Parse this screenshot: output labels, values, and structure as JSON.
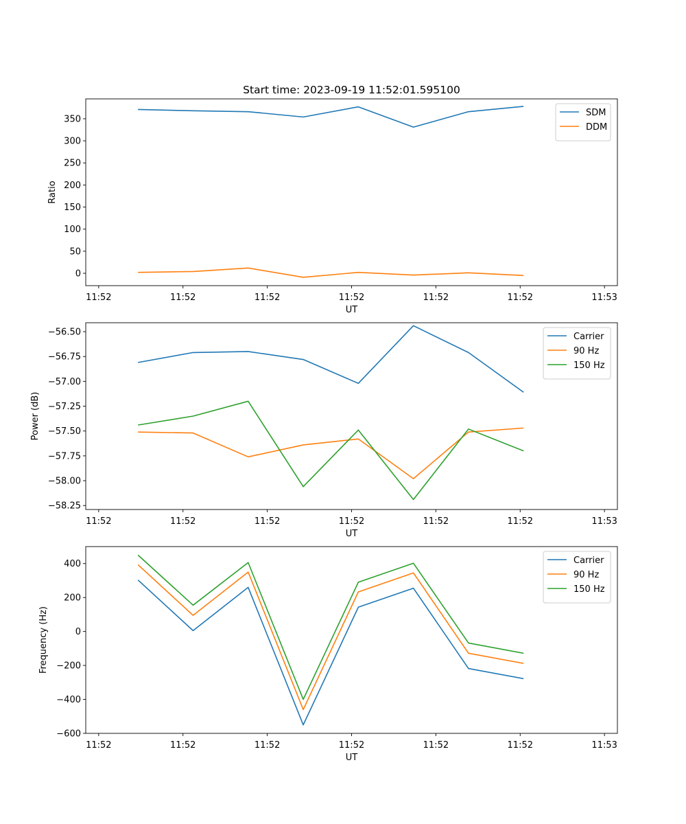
{
  "chart_data": [
    {
      "type": "line",
      "title": "Start time: 2023-09-19 11:52:01.595100",
      "xlabel": "UT",
      "ylabel": "Ratio",
      "ylim": [
        -28,
        395
      ],
      "yticks": [
        0,
        50,
        100,
        150,
        200,
        250,
        300,
        350
      ],
      "yticklabels": [
        "0",
        "50",
        "100",
        "150",
        "200",
        "250",
        "300",
        "350"
      ],
      "xlim": [
        -0.23,
        9.23
      ],
      "xticks": [
        0,
        1.5,
        3,
        4.5,
        6,
        7.5,
        9
      ],
      "xticklabels": [
        "11:52",
        "11:52",
        "11:52",
        "11:52",
        "11:52",
        "11:52",
        "11:53"
      ],
      "x": [
        0.7,
        1.68,
        2.66,
        3.64,
        4.62,
        5.6,
        6.58,
        7.56
      ],
      "legend": "upper right",
      "series": [
        {
          "name": "SDM",
          "color": "#1f77b4",
          "values": [
            371,
            368,
            366,
            354,
            377,
            331,
            366,
            378
          ]
        },
        {
          "name": "DDM",
          "color": "#ff7f0e",
          "values": [
            2,
            4,
            12,
            -9,
            2,
            -4,
            1,
            -5
          ]
        }
      ]
    },
    {
      "type": "line",
      "title": "",
      "xlabel": "UT",
      "ylabel": "Power (dB)",
      "ylim": [
        -58.29,
        -56.41
      ],
      "yticks": [
        -58.25,
        -58.0,
        -57.75,
        -57.5,
        -57.25,
        -57.0,
        -56.75,
        -56.5
      ],
      "yticklabels": [
        "−58.25",
        "−58.00",
        "−57.75",
        "−57.50",
        "−57.25",
        "−57.00",
        "−56.75",
        "−56.50"
      ],
      "xlim": [
        -0.23,
        9.23
      ],
      "xticks": [
        0,
        1.5,
        3,
        4.5,
        6,
        7.5,
        9
      ],
      "xticklabels": [
        "11:52",
        "11:52",
        "11:52",
        "11:52",
        "11:52",
        "11:52",
        "11:53"
      ],
      "x": [
        0.7,
        1.68,
        2.66,
        3.64,
        4.62,
        5.6,
        6.58,
        7.56
      ],
      "legend": "upper right",
      "series": [
        {
          "name": "Carrier",
          "color": "#1f77b4",
          "values": [
            -56.81,
            -56.71,
            -56.7,
            -56.78,
            -57.02,
            -56.44,
            -56.71,
            -57.11
          ]
        },
        {
          "name": "90 Hz",
          "color": "#ff7f0e",
          "values": [
            -57.51,
            -57.52,
            -57.76,
            -57.64,
            -57.58,
            -57.98,
            -57.51,
            -57.47
          ]
        },
        {
          "name": "150 Hz",
          "color": "#2ca02c",
          "values": [
            -57.44,
            -57.35,
            -57.2,
            -58.06,
            -57.49,
            -58.19,
            -57.48,
            -57.7
          ]
        }
      ]
    },
    {
      "type": "line",
      "title": "",
      "xlabel": "UT",
      "ylabel": "Frequency (Hz)",
      "ylim": [
        -600,
        500
      ],
      "yticks": [
        -600,
        -400,
        -200,
        0,
        200,
        400
      ],
      "yticklabels": [
        "−600",
        "−400",
        "−200",
        "0",
        "200",
        "400"
      ],
      "xlim": [
        -0.23,
        9.23
      ],
      "xticks": [
        0,
        1.5,
        3,
        4.5,
        6,
        7.5,
        9
      ],
      "xticklabels": [
        "11:52",
        "11:52",
        "11:52",
        "11:52",
        "11:52",
        "11:52",
        "11:53"
      ],
      "x": [
        0.7,
        1.68,
        2.66,
        3.64,
        4.62,
        5.6,
        6.58,
        7.56
      ],
      "legend": "upper right",
      "series": [
        {
          "name": "Carrier",
          "color": "#1f77b4",
          "values": [
            303,
            5,
            260,
            -550,
            143,
            255,
            -218,
            -278
          ]
        },
        {
          "name": "90 Hz",
          "color": "#ff7f0e",
          "values": [
            393,
            95,
            350,
            -460,
            233,
            345,
            -128,
            -188
          ]
        },
        {
          "name": "150 Hz",
          "color": "#2ca02c",
          "values": [
            450,
            155,
            406,
            -400,
            290,
            402,
            -68,
            -128
          ]
        }
      ]
    }
  ]
}
